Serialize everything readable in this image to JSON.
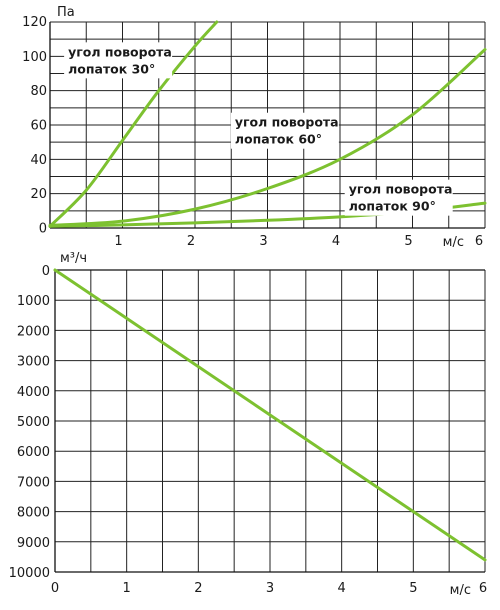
{
  "chart_data": [
    {
      "type": "line",
      "ylabel": "Па",
      "xlabel": "м/с",
      "xlim": [
        0,
        6
      ],
      "ylim": [
        0,
        120
      ],
      "x_ticks": [
        "1",
        "2",
        "3",
        "4",
        "5",
        "6"
      ],
      "y_ticks": [
        "0",
        "20",
        "40",
        "60",
        "80",
        "100",
        "120"
      ],
      "grid": true,
      "line_color": "#7dc130",
      "series": [
        {
          "label_lines": [
            "угол поворота",
            "лопаток 30°"
          ],
          "x": [
            0,
            0.5,
            1,
            1.5,
            2,
            2.3
          ],
          "y": [
            1,
            22,
            51,
            80,
            106,
            120
          ]
        },
        {
          "label_lines": [
            "угол поворота",
            "лопаток 60°"
          ],
          "x": [
            0,
            1,
            2,
            3,
            4,
            5,
            6
          ],
          "y": [
            1.5,
            4,
            11,
            23,
            40,
            66,
            104
          ]
        },
        {
          "label_lines": [
            "угол поворота",
            "лопаток 90°"
          ],
          "x": [
            0,
            1,
            2,
            3,
            4,
            5,
            6
          ],
          "y": [
            1,
            1.8,
            3,
            4.5,
            6.5,
            9.5,
            14.5
          ]
        }
      ]
    },
    {
      "type": "line",
      "ylabel": "м³/ч",
      "xlabel": "м/с",
      "xlim": [
        0,
        6
      ],
      "ylim": [
        0,
        10000
      ],
      "y_reversed": true,
      "x_ticks": [
        "0",
        "1",
        "2",
        "3",
        "4",
        "5",
        "6"
      ],
      "y_ticks": [
        "0",
        "1000",
        "2000",
        "3000",
        "4000",
        "5000",
        "6000",
        "7000",
        "8000",
        "9000",
        "10000"
      ],
      "grid": true,
      "line_color": "#7dc130",
      "series": [
        {
          "x": [
            0,
            6
          ],
          "y": [
            0,
            9600
          ]
        }
      ]
    }
  ]
}
